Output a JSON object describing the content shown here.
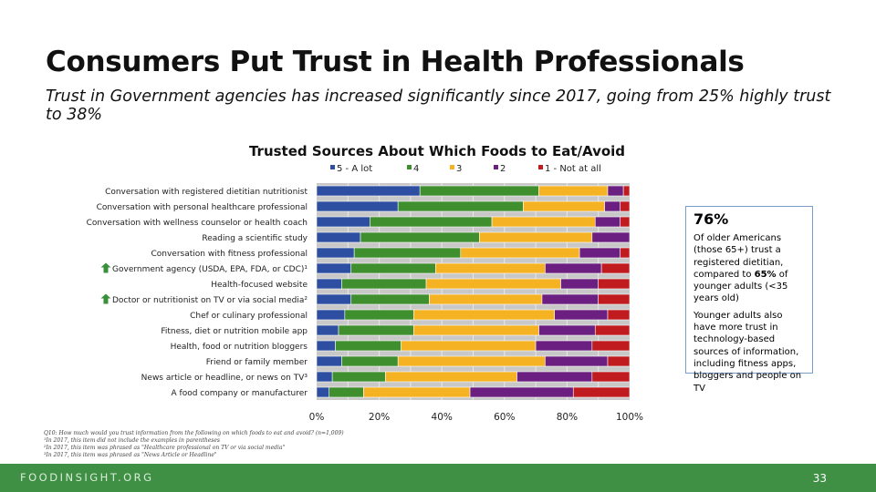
{
  "title": "Consumers Put Trust in Health Professionals",
  "subtitle": "Trust in Government agencies has increased significantly since 2017, going from 25% highly trust to 38%",
  "chart_data": {
    "type": "bar",
    "orientation": "horizontal",
    "stacked": true,
    "title": "Trusted Sources About Which Foods to Eat/Avoid",
    "legend": [
      "5 - A lot",
      "4",
      "3",
      "2",
      "1 - Not at all"
    ],
    "legend_position": "top",
    "colors": [
      "#2e4fa1",
      "#3f8f2e",
      "#f5b323",
      "#6b1f80",
      "#c01c20"
    ],
    "categories": [
      "Conversation with registered dietitian nutritionist",
      "Conversation with personal healthcare professional",
      "Conversation with wellness counselor or health coach",
      "Reading a scientific study",
      "Conversation with fitness professional",
      "Government agency (USDA, EPA, FDA, or CDC)¹",
      "Health-focused website",
      "Doctor or nutritionist on TV or via social media²",
      "Chef or culinary professional",
      "Fitness, diet or nutrition mobile app",
      "Health, food or nutrition bloggers",
      "Friend or family member",
      "News article or headline, or news on TV³",
      "A food company or manufacturer"
    ],
    "arrow_categories": [
      5,
      7
    ],
    "series": [
      {
        "name": "5 - A lot",
        "values": [
          33,
          26,
          17,
          14,
          12,
          11,
          8,
          11,
          9,
          7,
          6,
          8,
          5,
          4
        ]
      },
      {
        "name": "4",
        "values": [
          38,
          40,
          39,
          38,
          34,
          27,
          27,
          25,
          22,
          24,
          21,
          18,
          17,
          11
        ]
      },
      {
        "name": "3",
        "values": [
          22,
          26,
          33,
          36,
          38,
          35,
          43,
          36,
          45,
          40,
          43,
          47,
          42,
          34
        ]
      },
      {
        "name": "2",
        "values": [
          5,
          5,
          8,
          12,
          13,
          18,
          12,
          18,
          17,
          18,
          18,
          20,
          24,
          33
        ]
      },
      {
        "name": "1 - Not at all",
        "values": [
          2,
          3,
          3,
          0,
          3,
          9,
          10,
          10,
          7,
          11,
          12,
          7,
          12,
          18
        ]
      }
    ],
    "x": {
      "ticks": [
        "0%",
        "20%",
        "40%",
        "60%",
        "80%",
        "100%"
      ],
      "range": [
        0,
        100
      ]
    },
    "gridlines": true
  },
  "callout": {
    "big_stat": "76%",
    "para1_a": "Of older Americans (those 65+) trust a registered dietitian, compared to ",
    "para1_bold": "65%",
    "para1_b": " of younger adults (<35 years old)",
    "para2": "Younger adults also have more trust in technology-based sources of information, including fitness apps, bloggers and people on TV"
  },
  "footnotes": [
    "Q10: How much would you trust information from the following on which foods to eat and avoid? (n=1,009)",
    "¹In 2017, this item did not include the examples in parentheses",
    "²In 2017, this item was phrased as \"Healthcare professional on TV or via social media\"",
    "³In 2017, this item was phrased as \"News Article or Headline\""
  ],
  "footer": {
    "brand": "FOODINSIGHT.ORG",
    "page_number": "33"
  }
}
